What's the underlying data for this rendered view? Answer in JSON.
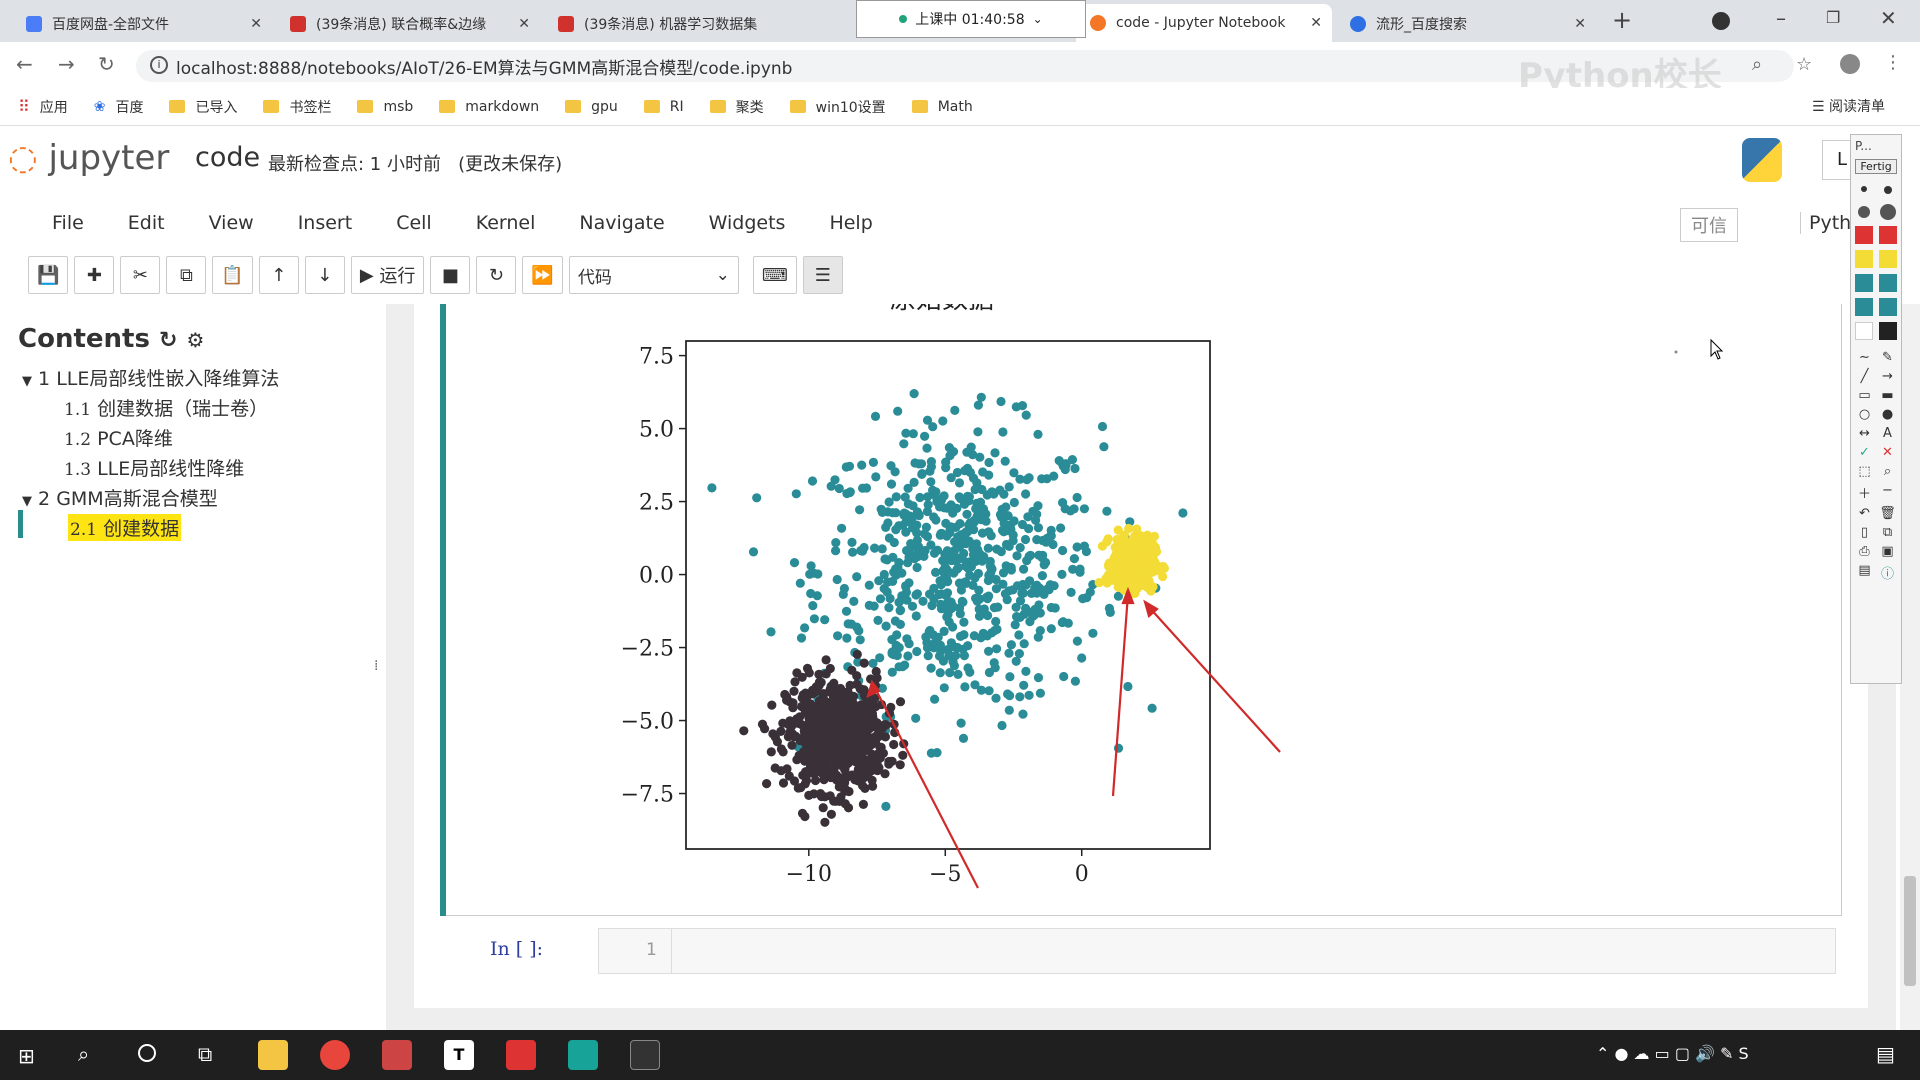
{
  "browser": {
    "tabs": [
      {
        "title": "百度网盘-全部文件",
        "color": "#4a7cf7"
      },
      {
        "title": "(39条消息) 联合概率&边缘",
        "color": "#d0312d"
      },
      {
        "title": "(39条消息) 机器学习数据集",
        "color": "#d0312d"
      },
      {
        "title": "code - Jupyter Notebook",
        "color": "#f37726"
      },
      {
        "title": "流形_百度搜索",
        "color": "#2f6fe4"
      }
    ],
    "timer": "上课中 01:40:58",
    "url": "localhost:8888/notebooks/AIoT/26-EM算法与GMM高斯混合模型/code.ipynb",
    "watermark": "Python校长",
    "bookmarks": [
      "应用",
      "百度",
      "已导入",
      "书签栏",
      "msb",
      "markdown",
      "gpu",
      "RI",
      "聚类",
      "win10设置",
      "Math"
    ],
    "reading_list": "阅读清单"
  },
  "jupyter": {
    "logo": "jupyter",
    "notebook_name": "code",
    "checkpoint": "最新检查点: 1 小时前",
    "unsaved": "(更改未保存)",
    "menu": [
      "File",
      "Edit",
      "View",
      "Insert",
      "Cell",
      "Kernel",
      "Navigate",
      "Widgets",
      "Help"
    ],
    "trusted": "可信",
    "kernel": "Pytho",
    "run_label": "运行",
    "cell_type": "代码"
  },
  "toc": {
    "title": "Contents",
    "items": [
      {
        "num": "1",
        "label": "LLE局部线性嵌入降维算法",
        "level": 1
      },
      {
        "num": "1.1",
        "label": "创建数据（瑞士卷）",
        "level": 2
      },
      {
        "num": "1.2",
        "label": "PCA降维",
        "level": 2
      },
      {
        "num": "1.3",
        "label": "LLE局部线性降维",
        "level": 2
      },
      {
        "num": "2",
        "label": "GMM高斯混合模型",
        "level": 1
      },
      {
        "num": "2.1",
        "label": "创建数据",
        "level": 2,
        "highlight": true
      }
    ]
  },
  "cell": {
    "prompt": "In [ ]:",
    "line_number": "1"
  },
  "side_panel": {
    "title": "P...",
    "button": "Fertig"
  },
  "chart_data": {
    "type": "scatter",
    "title": "原始数据",
    "xlim": [
      -14.5,
      4.7
    ],
    "ylim": [
      -9.4,
      8.0
    ],
    "xticks": [
      "−10",
      "−5",
      "0"
    ],
    "xtick_values": [
      -10,
      -5,
      0
    ],
    "yticks": [
      "7.5",
      "5.0",
      "2.5",
      "0.0",
      "−2.5",
      "−5.0",
      "−7.5"
    ],
    "ytick_values": [
      7.5,
      5.0,
      2.5,
      0.0,
      -2.5,
      -5.0,
      -7.5
    ],
    "series": [
      {
        "color": "#2a8c97",
        "center": [
          -4.5,
          0.2
        ],
        "spread": [
          2.6,
          2.4
        ],
        "n": 650
      },
      {
        "color": "#3a3138",
        "center": [
          -9.0,
          -5.5
        ],
        "spread": [
          0.9,
          0.95
        ],
        "n": 650
      },
      {
        "color": "#f4dc36",
        "center": [
          1.9,
          0.4
        ],
        "spread": [
          0.38,
          0.45
        ],
        "n": 380
      }
    ]
  }
}
